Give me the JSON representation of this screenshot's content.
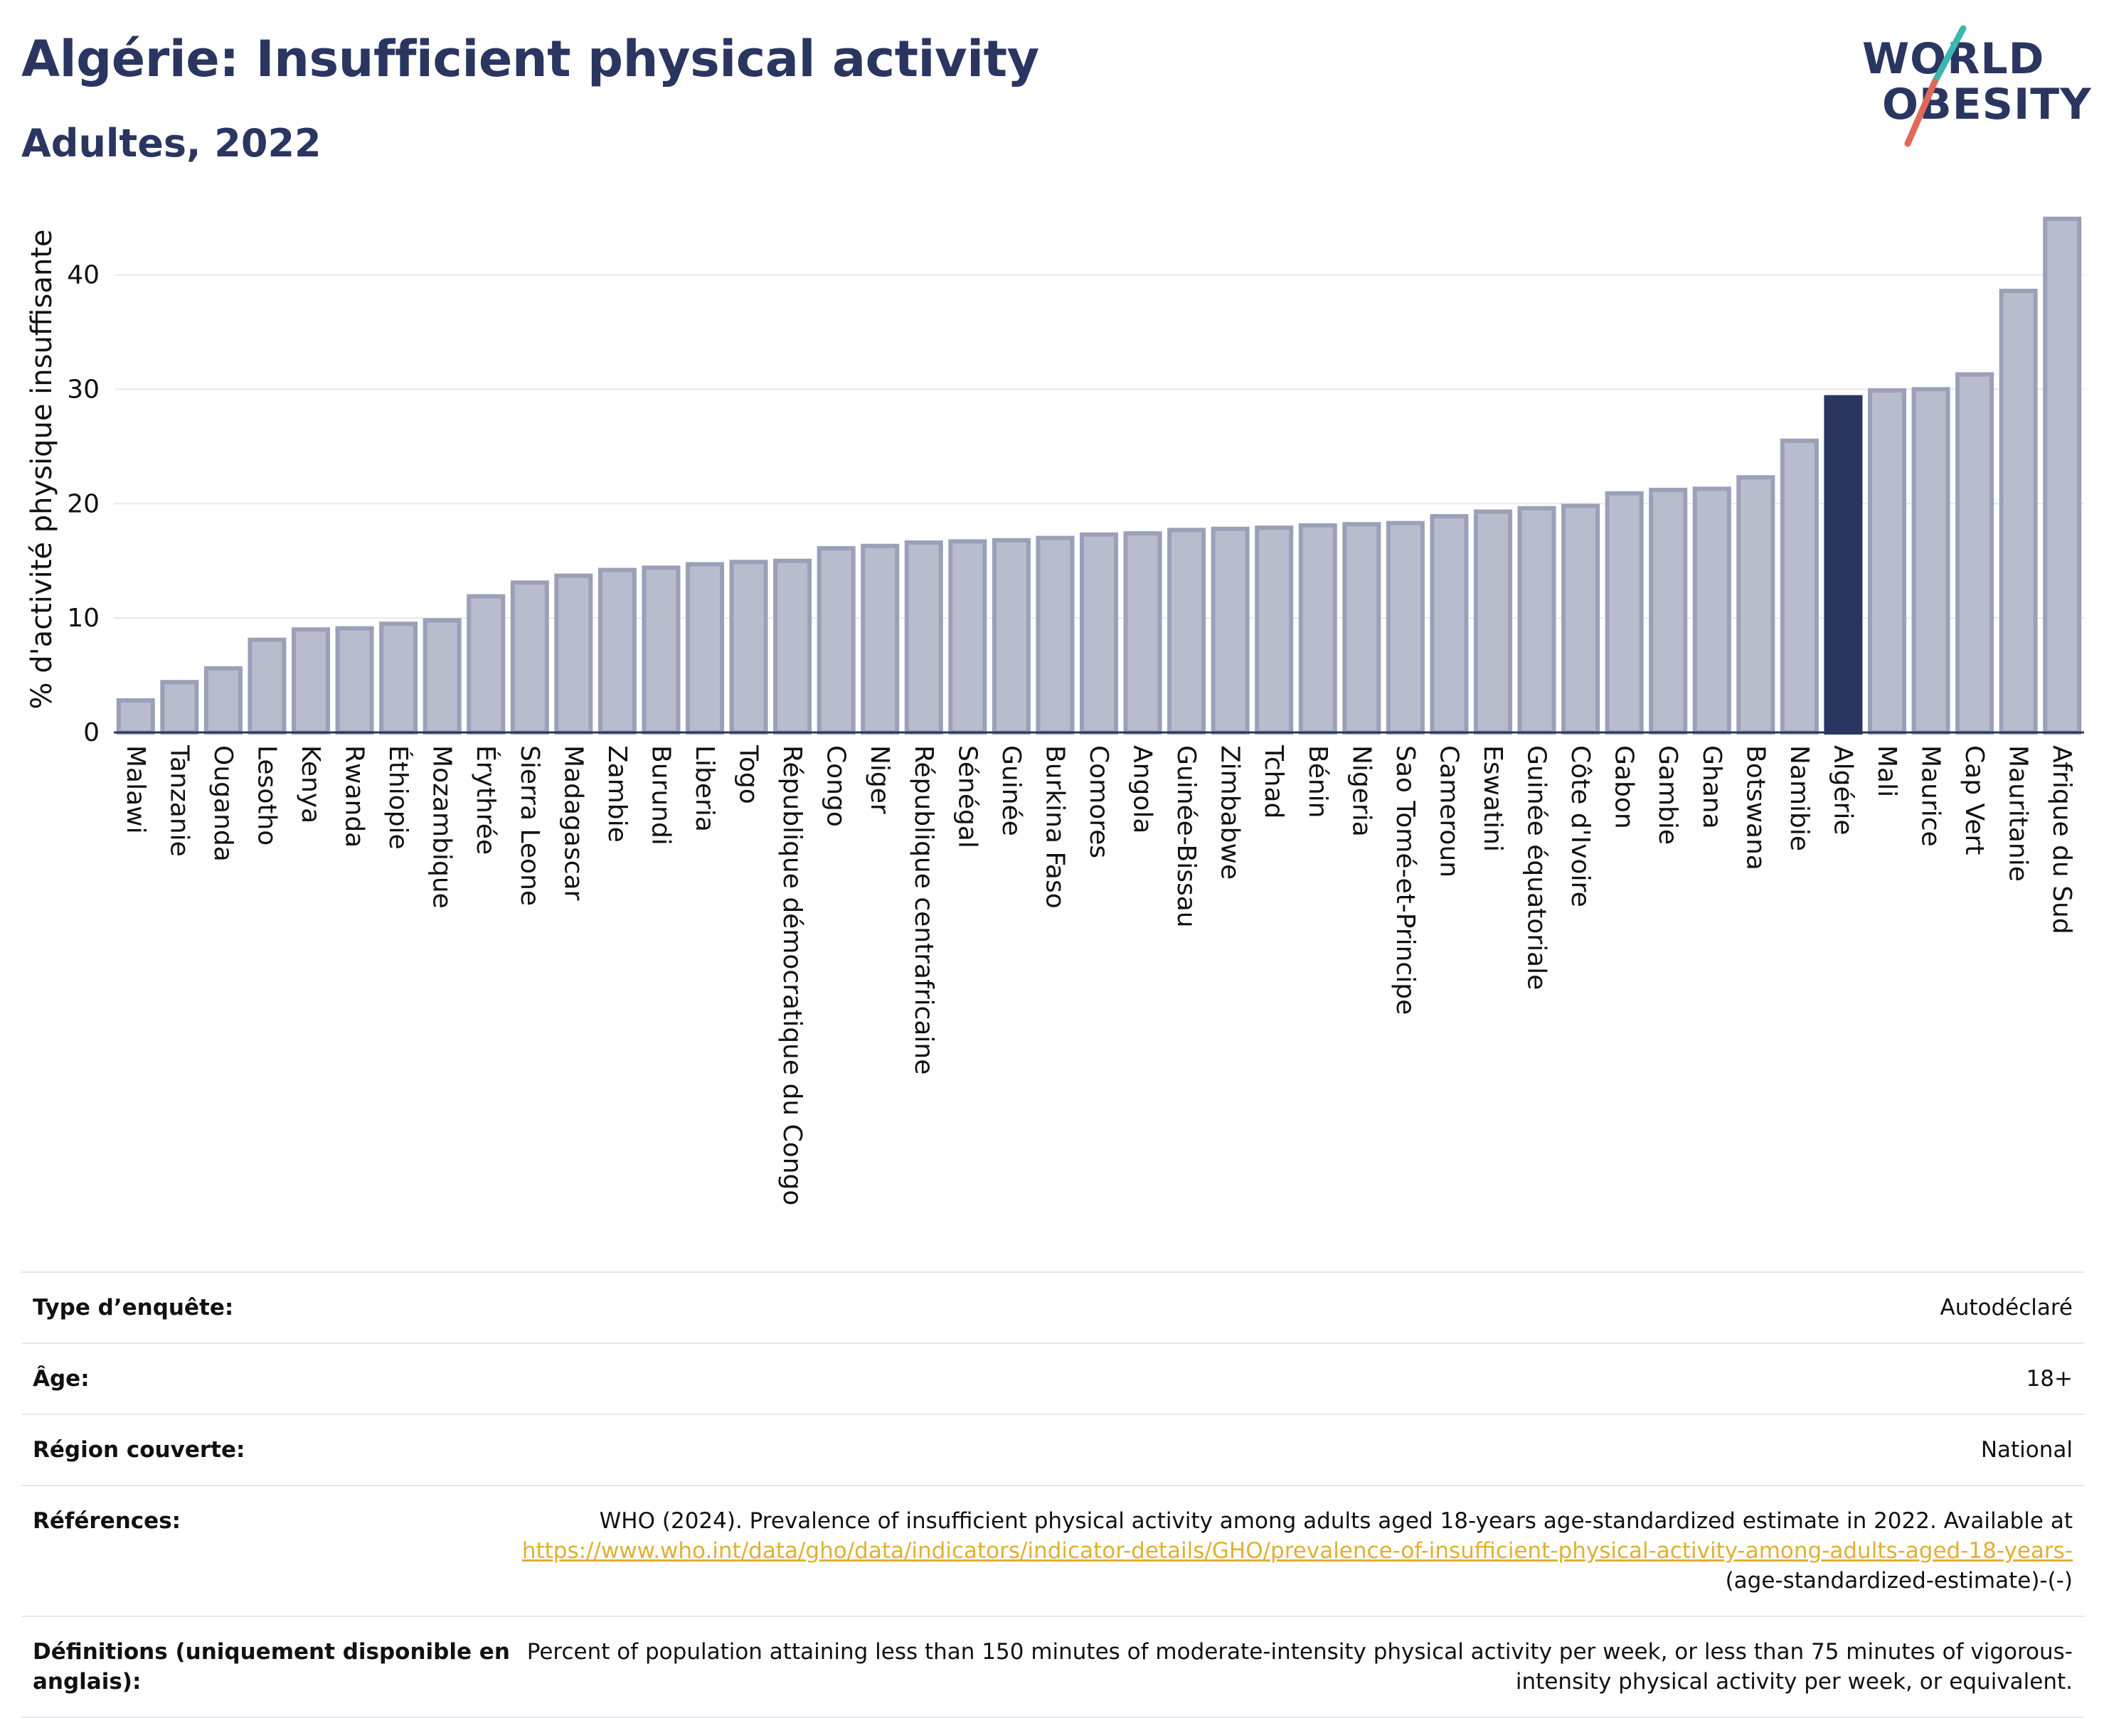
{
  "header": {
    "title": "Algérie: Insufficient physical activity",
    "subtitle": "Adultes, 2022"
  },
  "logo": {
    "line1": "WORLD",
    "line2": "OBESITY"
  },
  "colors": {
    "bar": "#b8bccd",
    "bar_stroke": "#9aa0b8",
    "highlight": "#2a3560",
    "grid": "#e6e8ee",
    "text": "#2a3560"
  },
  "chart_data": {
    "type": "bar",
    "ylabel": "% d'activité physique insuffisante",
    "ylim": [
      0,
      46
    ],
    "yticks": [
      0,
      10,
      20,
      30,
      40
    ],
    "highlight": "Algérie",
    "categories": [
      "Malawi",
      "Tanzanie",
      "Ouganda",
      "Lesotho",
      "Kenya",
      "Rwanda",
      "Éthiopie",
      "Mozambique",
      "Érythrée",
      "Sierra Leone",
      "Madagascar",
      "Zambie",
      "Burundi",
      "Liberia",
      "Togo",
      "République démocratique du Congo",
      "Congo",
      "Niger",
      "République centrafricaine",
      "Sénégal",
      "Guinée",
      "Burkina Faso",
      "Comores",
      "Angola",
      "Guinée-Bissau",
      "Zimbabwe",
      "Tchad",
      "Bénin",
      "Nigeria",
      "Sao Tomé-et-Principe",
      "Cameroun",
      "Eswatini",
      "Guinée équatoriale",
      "Côte d'Ivoire",
      "Gabon",
      "Gambie",
      "Ghana",
      "Botswana",
      "Namibie",
      "Algérie",
      "Mali",
      "Maurice",
      "Cap Vert",
      "Mauritanie",
      "Afrique du Sud"
    ],
    "values": [
      2.8,
      4.4,
      5.6,
      8.1,
      9.0,
      9.1,
      9.5,
      9.8,
      11.9,
      13.1,
      13.7,
      14.2,
      14.4,
      14.7,
      14.9,
      15.0,
      16.1,
      16.3,
      16.6,
      16.7,
      16.8,
      17.0,
      17.3,
      17.4,
      17.7,
      17.8,
      17.9,
      18.1,
      18.2,
      18.3,
      18.9,
      19.3,
      19.6,
      19.8,
      20.9,
      21.2,
      21.3,
      22.3,
      25.5,
      29.3,
      29.9,
      30.0,
      31.3,
      38.6,
      44.9
    ]
  },
  "info_table": [
    {
      "label": "Type d’enquête:",
      "value": "Autodéclaré"
    },
    {
      "label": "Âge:",
      "value": "18+"
    },
    {
      "label": "Région couverte:",
      "value": "National"
    },
    {
      "label": "Références:",
      "value": "WHO (2024). Prevalence of insufficient physical activity among adults aged 18-years age-standardized estimate in 2022. Available at",
      "link": "https://www.who.int/data/gho/data/indicators/indicator-details/GHO/prevalence-of-insufficient-physical-activity-among-adults-aged-18-years-",
      "suffix": "(age-standardized-estimate)-(-)"
    },
    {
      "label": "Définitions (uniquement disponible en anglais):",
      "value": "Percent of population attaining less than 150 minutes of moderate-intensity physical activity per week, or less than 75 minutes of vigorous-intensity physical activity per week, or equivalent."
    }
  ]
}
